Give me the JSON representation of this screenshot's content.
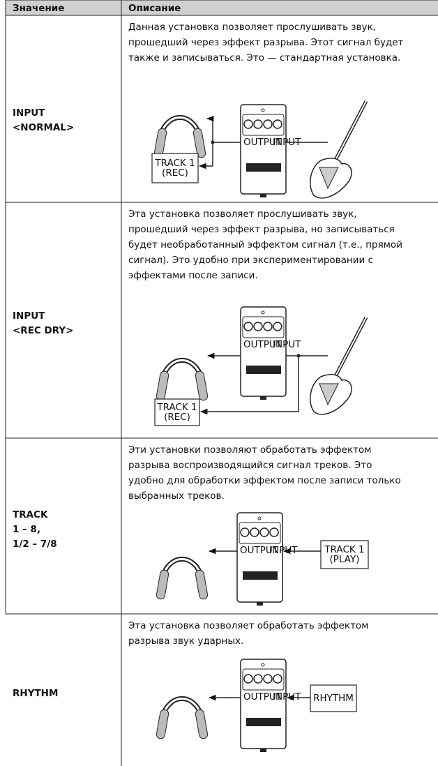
{
  "header": {
    "col1": "Значение",
    "col2": "Описание"
  },
  "pedal": {
    "output": "OUTPUT",
    "input": "INPUT"
  },
  "rows": [
    {
      "value": [
        "INPUT",
        "<NORMAL>"
      ],
      "description": [
        "Данная установка позволяет прослушивать звук,",
        "прошедший через эффект разрыва. Этот сигнал будет",
        "также и записываться. Это — стандартная установка."
      ],
      "box": [
        "TRACK 1",
        "(REC)"
      ]
    },
    {
      "value": [
        "INPUT",
        "<REC DRY>"
      ],
      "description": [
        "Эта установка позволяет прослушивать звук,",
        "прошедший через эффект разрыва, но записываться",
        "будет необработанный эффектом сигнал (т.е., прямой",
        "сигнал). Это удобно при экспериментировании с",
        "эффектами после записи."
      ],
      "box": [
        "TRACK 1",
        "(REC)"
      ]
    },
    {
      "value": [
        "TRACK",
        "1 – 8,",
        "1/2 – 7/8"
      ],
      "description": [
        "Эти установки позволяют обработать эффектом",
        "разрыва воспроизводящийся сигнал треков. Это",
        "удобно для обработки эффектом после записи только",
        "выбранных треков."
      ],
      "box": [
        "TRACK 1",
        "(PLAY)"
      ]
    },
    {
      "value": [
        "RHYTHM"
      ],
      "description": [
        "Эта установка позволяет обработать эффектом",
        "разрыва звук ударных."
      ],
      "box": [
        "RHYTHM"
      ]
    }
  ]
}
